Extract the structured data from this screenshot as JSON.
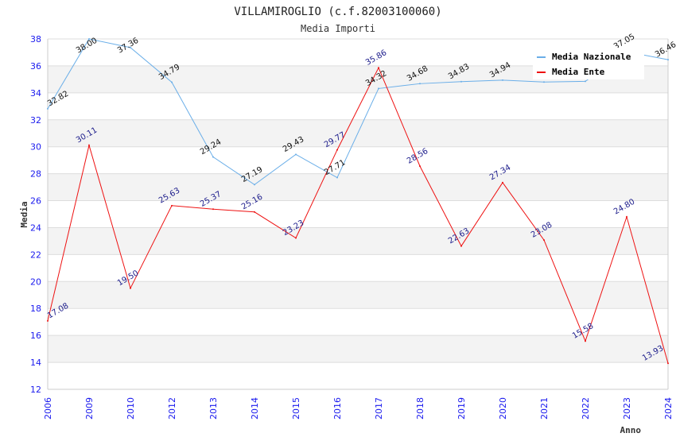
{
  "chart_data": {
    "type": "line",
    "title": "VILLAMIROGLIO (c.f.82003100060)",
    "subtitle": "Media Importi",
    "xlabel": "Anno",
    "ylabel": "Media",
    "ylim": [
      12,
      38
    ],
    "yticks": [
      12,
      14,
      16,
      18,
      20,
      22,
      24,
      26,
      28,
      30,
      32,
      34,
      36,
      38
    ],
    "grid": true,
    "legend_position": "top-right",
    "categories": [
      "2006",
      "2009",
      "2010",
      "2012",
      "2013",
      "2014",
      "2015",
      "2016",
      "2017",
      "2018",
      "2019",
      "2020",
      "2021",
      "2022",
      "2023",
      "2024"
    ],
    "series": [
      {
        "name": "Media Nazionale",
        "color": "#6aaee8",
        "label_color": "#111111",
        "values": [
          32.82,
          38.0,
          37.36,
          34.79,
          29.24,
          27.19,
          29.43,
          27.71,
          34.32,
          34.68,
          34.83,
          34.94,
          34.8,
          34.85,
          37.05,
          36.46
        ],
        "labels": [
          "32.82",
          "38.00",
          "37.36",
          "34.79",
          "29.24",
          "27.19",
          "29.43",
          "27.71",
          "34.32",
          "34.68",
          "34.83",
          "34.94",
          "",
          "",
          "37.05",
          "36.46"
        ]
      },
      {
        "name": "Media Ente",
        "color": "#ee1111",
        "label_color": "#1a1a8a",
        "values": [
          17.08,
          30.11,
          19.5,
          25.63,
          25.37,
          25.16,
          23.23,
          29.77,
          35.86,
          28.56,
          22.63,
          27.34,
          23.08,
          15.58,
          24.8,
          13.93
        ],
        "labels": [
          "17.08",
          "30.11",
          "19.50",
          "25.63",
          "25.37",
          "25.16",
          "23.23",
          "29.77",
          "35.86",
          "28.56",
          "22.63",
          "27.34",
          "23.08",
          "15.58",
          "24.80",
          "13.93"
        ]
      }
    ]
  },
  "colors": {
    "tick_text": "#1a1aee",
    "grid_line": "#dddddd",
    "band_fill": "#f3f3f3"
  }
}
